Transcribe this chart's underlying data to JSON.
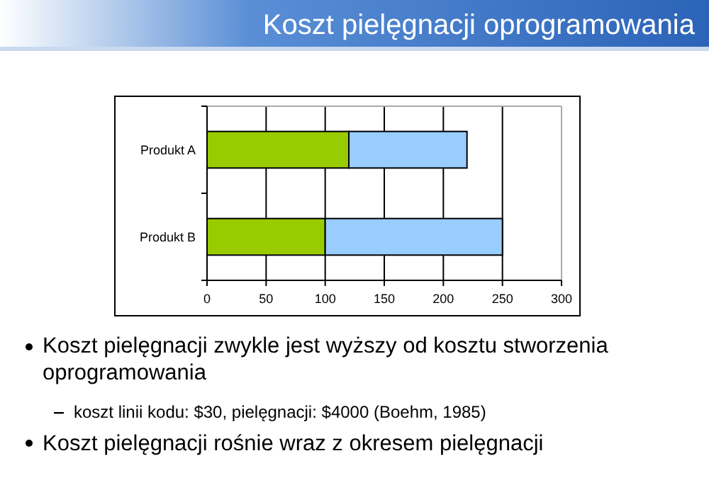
{
  "chart_data": {
    "type": "bar",
    "title": "Koszt pielęgnacji oprogramowania",
    "orientation": "horizontal",
    "stacked": true,
    "categories": [
      "Produkt A",
      "Produkt B"
    ],
    "series": [
      {
        "color": "#99cc00",
        "values": [
          120,
          100
        ]
      },
      {
        "color": "#99ccff",
        "values": [
          100,
          150
        ]
      }
    ],
    "xlim": [
      0,
      300
    ],
    "xticks": [
      0,
      50,
      100,
      150,
      200,
      250,
      300
    ],
    "grid": "x",
    "annotations": [
      "Koszt pielęgnacji zwykle jest wyższy od kosztu stworzenia oprogramowania",
      "koszt linii kodu: $30, pielęgnacji: $4000 (Boehm, 1985)",
      "Koszt pielęgnacji rośnie wraz z okresem pielęgnacji"
    ]
  }
}
